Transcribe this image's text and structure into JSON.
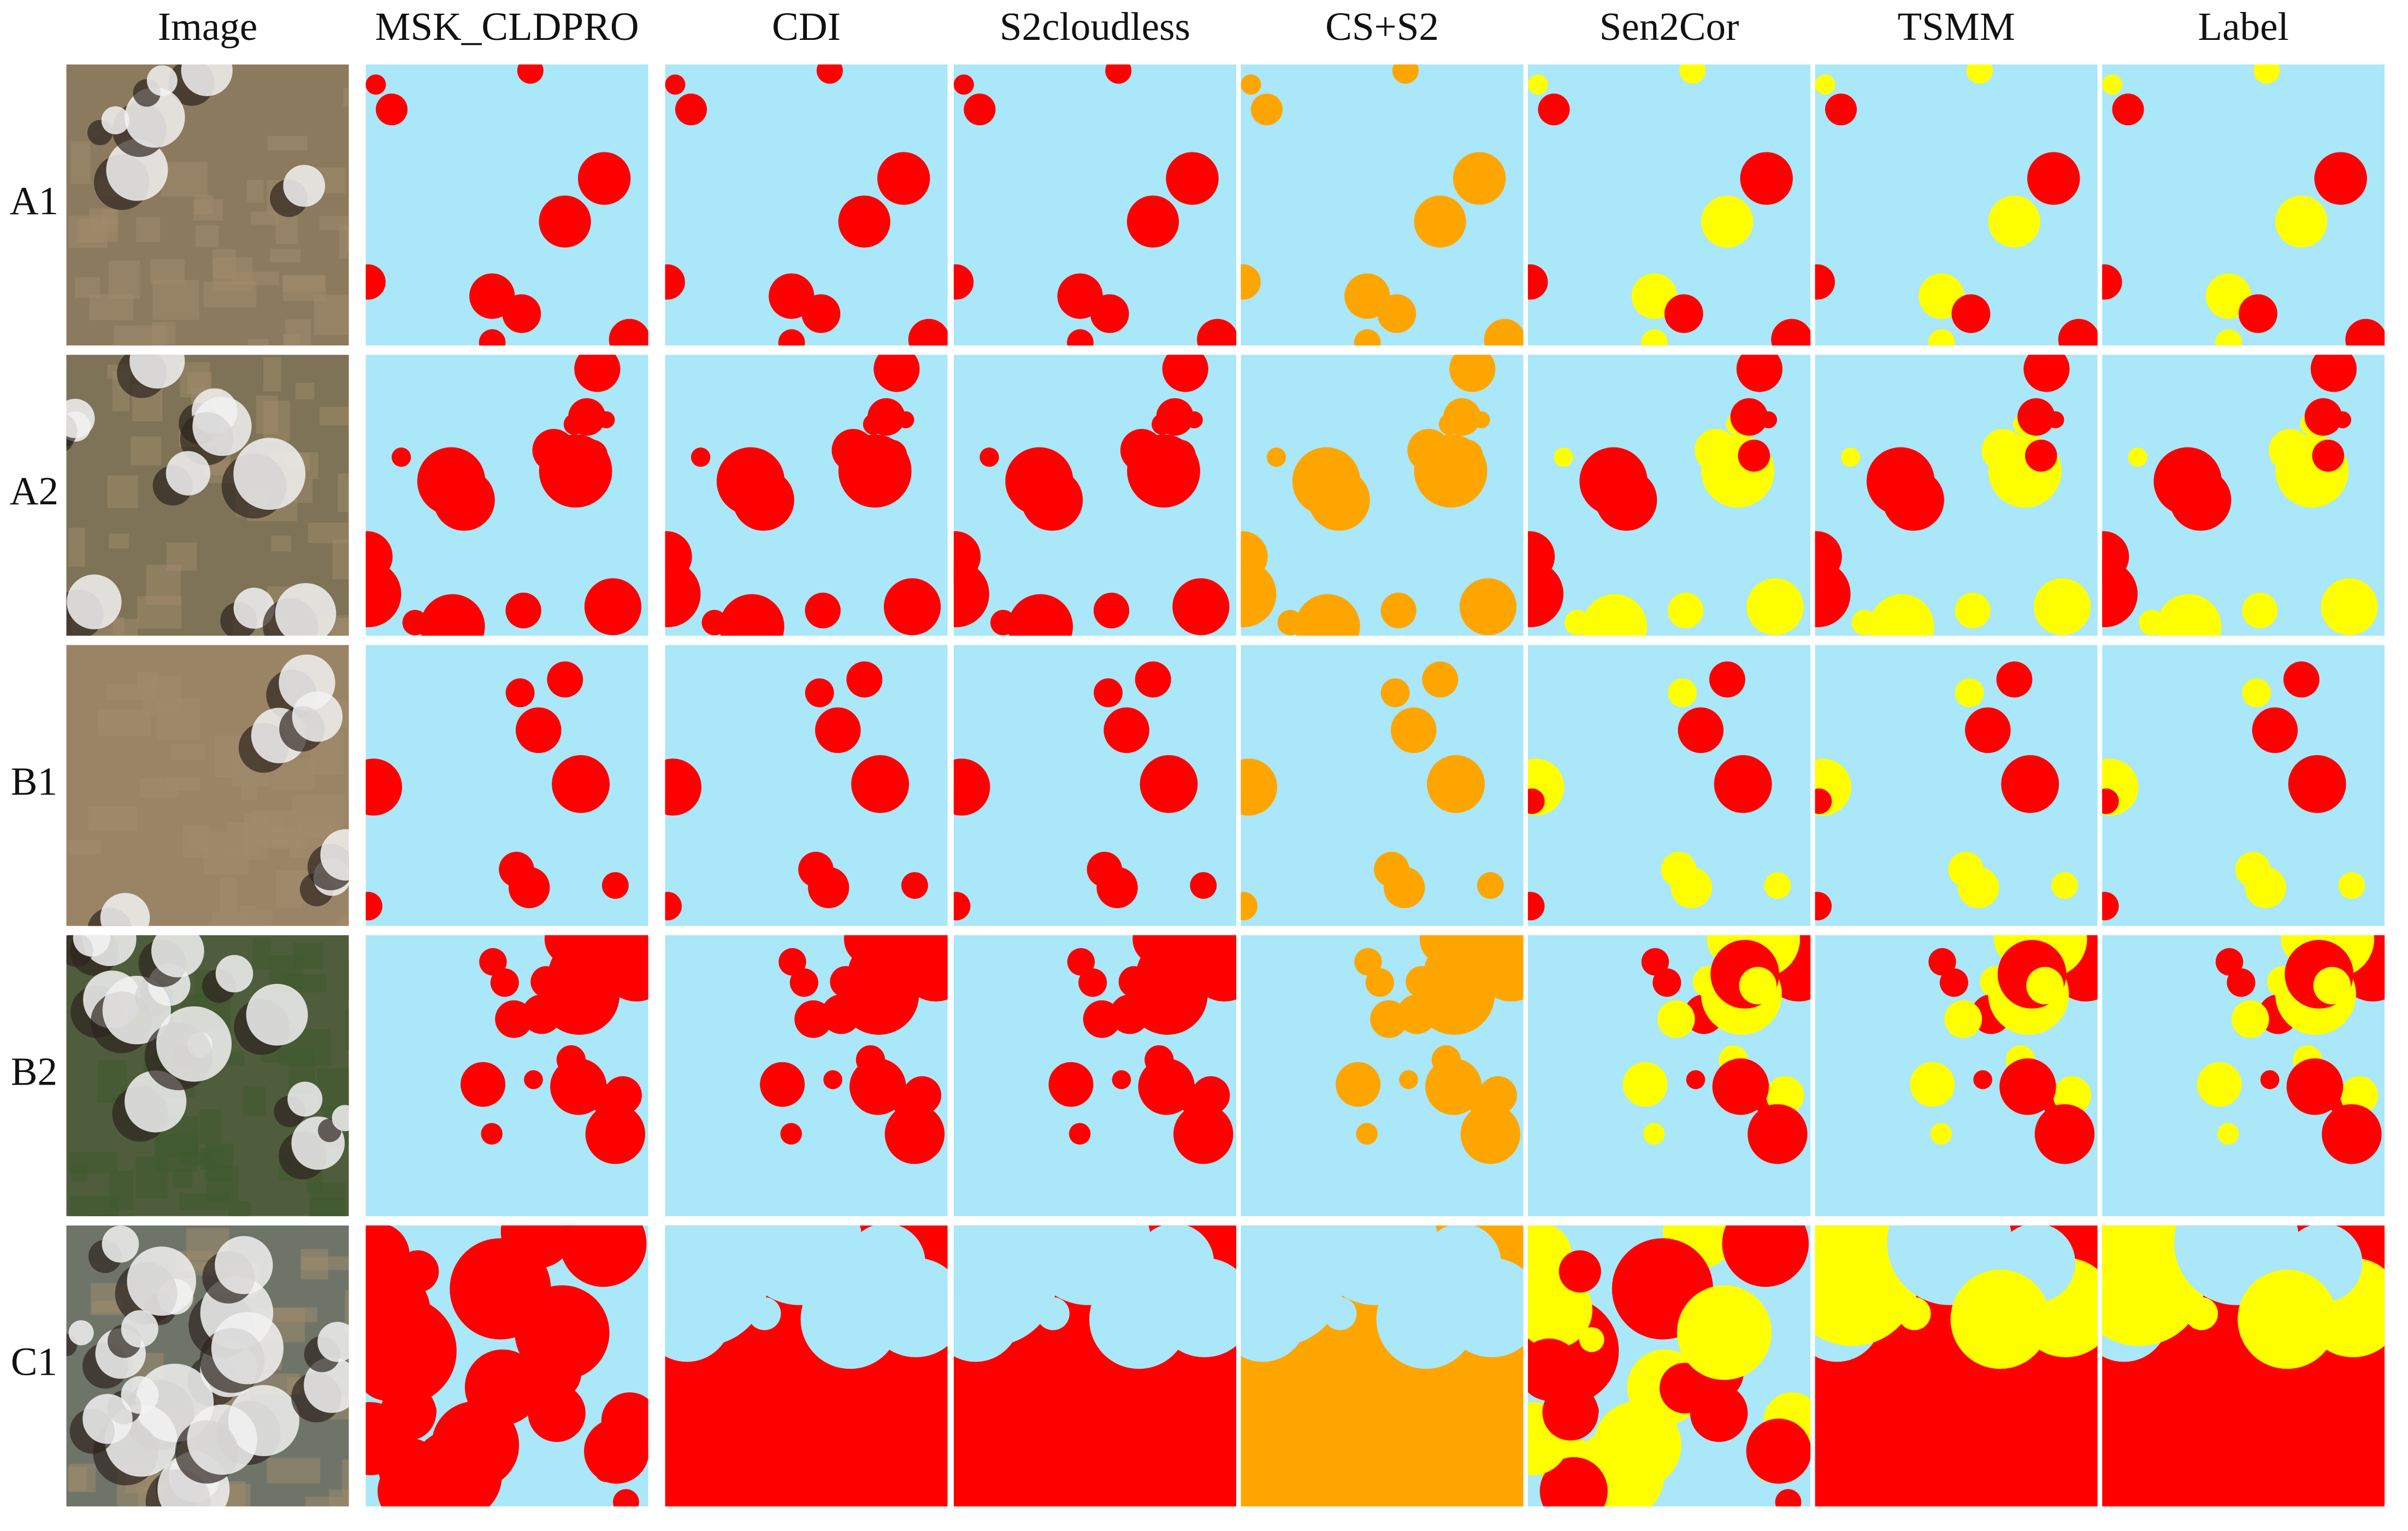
{
  "columns": [
    "Image",
    "MSK_CLDPRO",
    "CDI",
    "S2cloudless",
    "CS+S2",
    "Sen2Cor",
    "TSMM",
    "Label"
  ],
  "rows": [
    "A1",
    "A2",
    "B1",
    "B2",
    "C1"
  ]
}
